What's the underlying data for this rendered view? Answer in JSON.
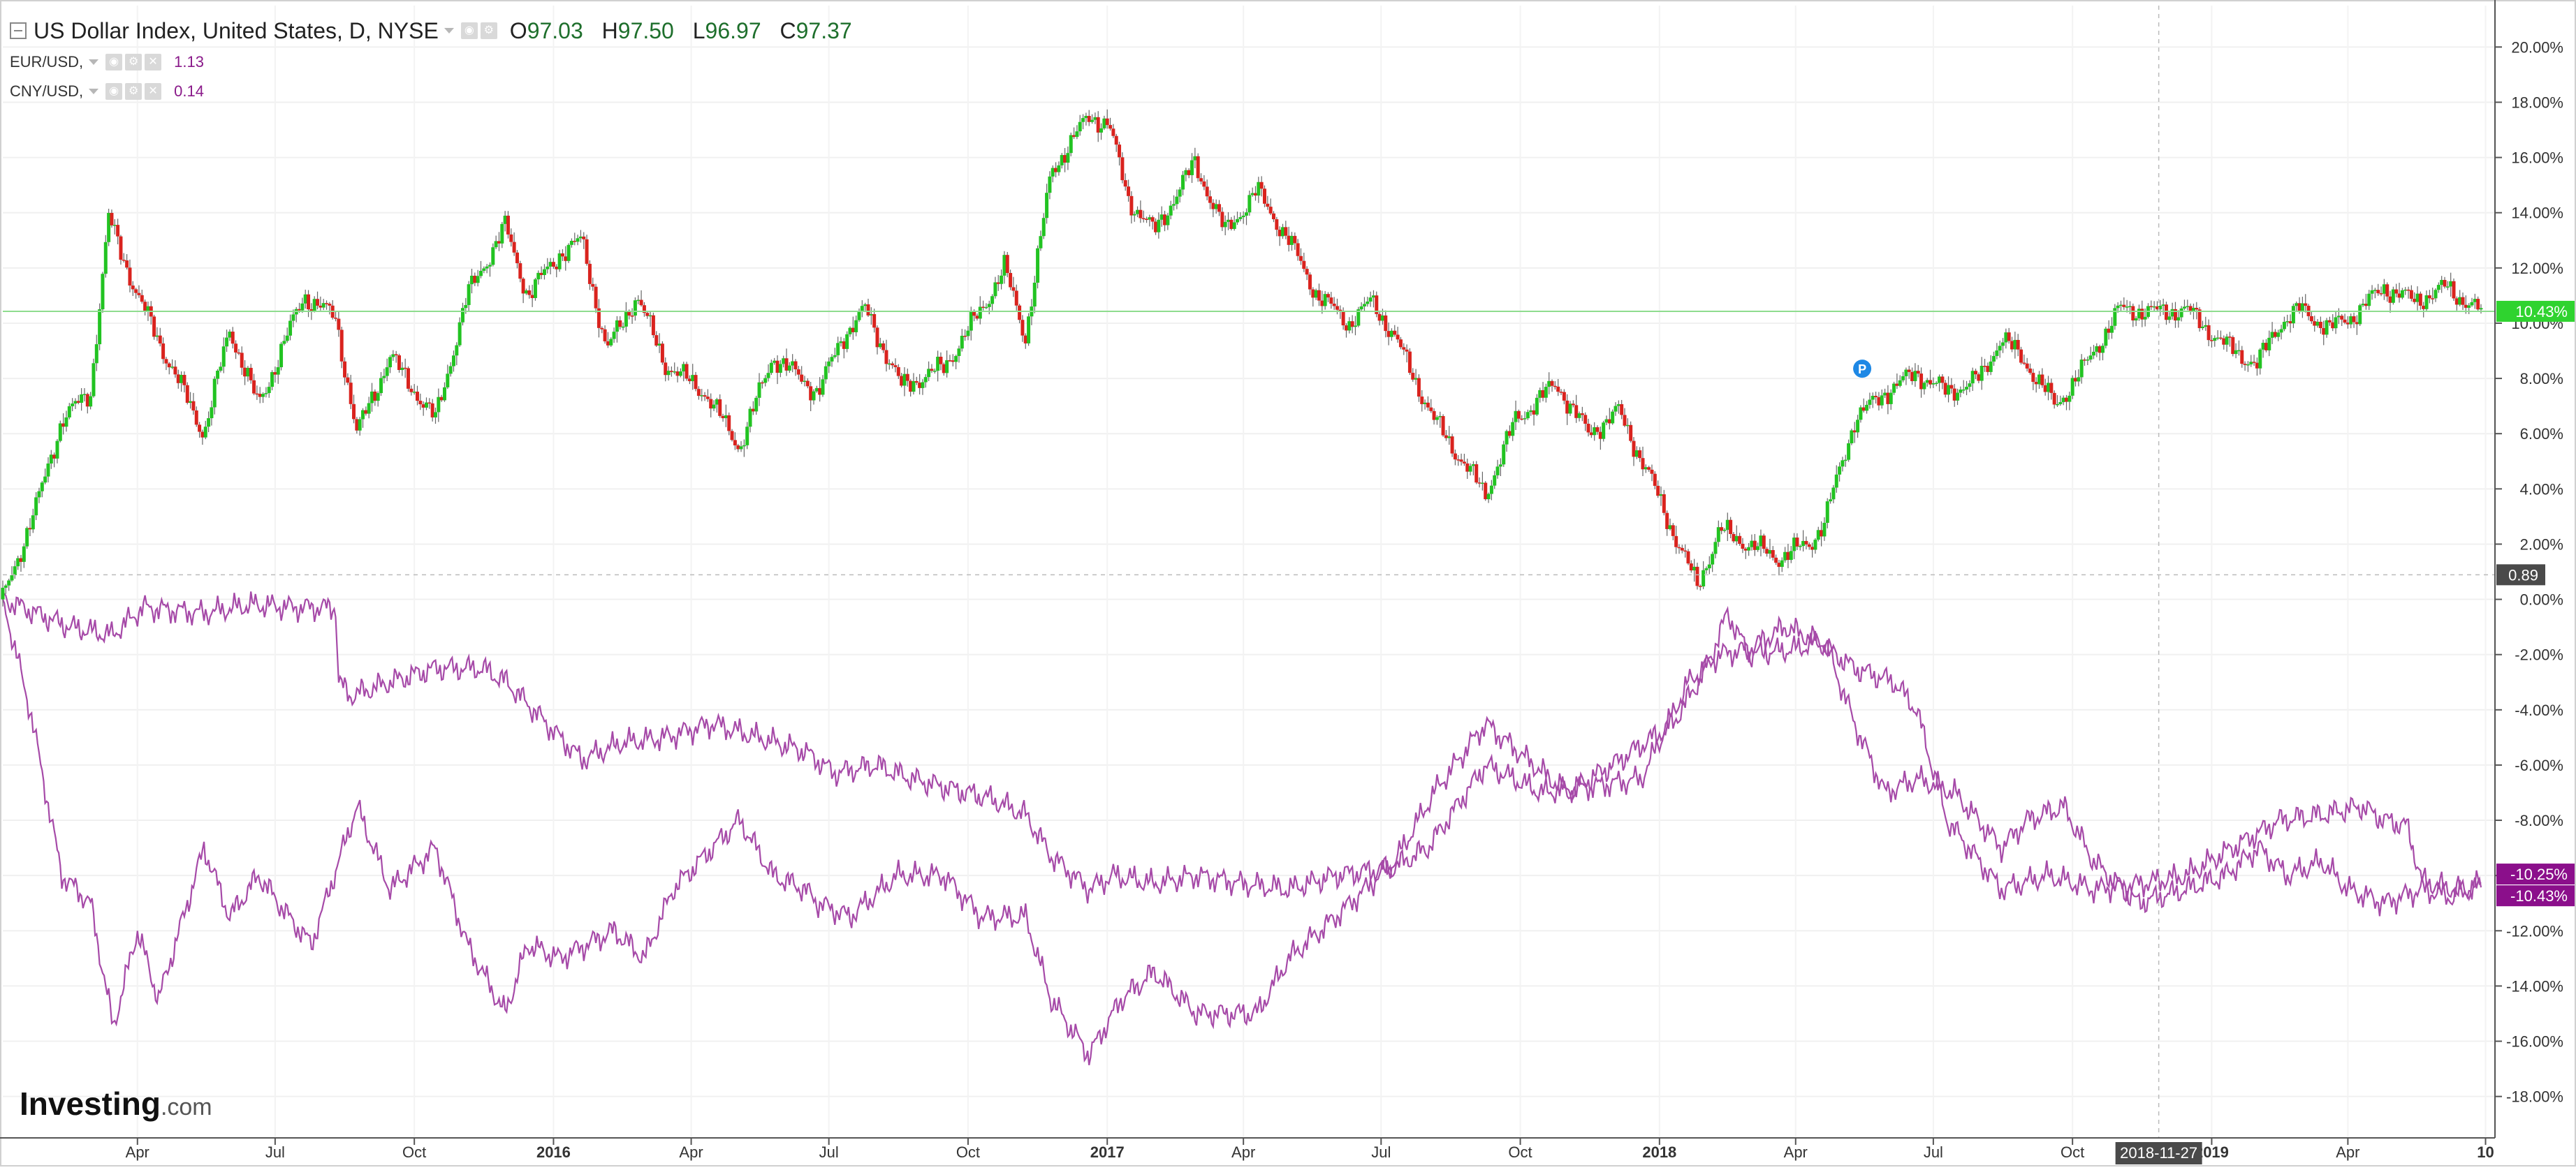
{
  "legend": {
    "main": {
      "title": "US Dollar Index, United States, D, NYSE",
      "open_label": "O",
      "open": "97.03",
      "high_label": "H",
      "high": "97.50",
      "low_label": "L",
      "low": "96.97",
      "close_label": "C",
      "close": "97.37"
    },
    "overlays": [
      {
        "symbol": "EUR/USD,",
        "value": "1.13"
      },
      {
        "symbol": "CNY/USD,",
        "value": "0.14"
      }
    ]
  },
  "watermark": {
    "brand": "Investing",
    "suffix": ".com"
  },
  "colors": {
    "up": "#22c322",
    "down": "#d9231e",
    "overlay": "#a64aa8",
    "current_line": "#8fdc8f",
    "current_badge": "#2fd32f",
    "overlay_badge": "#8b0f8b",
    "crosshair_badge": "#4a4a4a"
  },
  "chart_data": {
    "type": "candlestick",
    "x_start": "2015-01-02",
    "x_end": "2019-06-28",
    "ylim": [
      -19.5,
      21.5
    ],
    "y_unit": "%",
    "y_ticks": [
      "20.00%",
      "18.00%",
      "16.00%",
      "14.00%",
      "12.00%",
      "10.00%",
      "8.00%",
      "6.00%",
      "4.00%",
      "2.00%",
      "0.00%",
      "-2.00%",
      "-4.00%",
      "-6.00%",
      "-8.00%",
      "-10.00%",
      "-12.00%",
      "-14.00%",
      "-16.00%",
      "-18.00%"
    ],
    "x_ticks": [
      {
        "date": "2015-01-01",
        "label": "2015",
        "bold": true
      },
      {
        "date": "2015-04-01",
        "label": "Apr"
      },
      {
        "date": "2015-07-01",
        "label": "Jul"
      },
      {
        "date": "2015-10-01",
        "label": "Oct"
      },
      {
        "date": "2016-01-01",
        "label": "2016",
        "bold": true
      },
      {
        "date": "2016-04-01",
        "label": "Apr"
      },
      {
        "date": "2016-07-01",
        "label": "Jul"
      },
      {
        "date": "2016-10-01",
        "label": "Oct"
      },
      {
        "date": "2017-01-01",
        "label": "2017",
        "bold": true
      },
      {
        "date": "2017-04-01",
        "label": "Apr"
      },
      {
        "date": "2017-07-01",
        "label": "Jul"
      },
      {
        "date": "2017-10-01",
        "label": "Oct"
      },
      {
        "date": "2018-01-01",
        "label": "2018",
        "bold": true
      },
      {
        "date": "2018-04-01",
        "label": "Apr"
      },
      {
        "date": "2018-07-01",
        "label": "Jul"
      },
      {
        "date": "2018-10-01",
        "label": "Oct"
      },
      {
        "date": "2019-01-01",
        "label": "2019",
        "bold": true
      },
      {
        "date": "2019-04-01",
        "label": "Apr"
      },
      {
        "date": "2019-07-01",
        "label": "10",
        "bold": true
      }
    ],
    "series": [
      {
        "symbol": "US Dollar Index",
        "style": "candles",
        "points": [
          [
            "2015-01-02",
            0.0
          ],
          [
            "2015-01-25",
            3.5
          ],
          [
            "2015-02-10",
            6.5
          ],
          [
            "2015-03-01",
            7.5
          ],
          [
            "2015-03-13",
            13.8
          ],
          [
            "2015-04-01",
            11.0
          ],
          [
            "2015-04-20",
            8.8
          ],
          [
            "2015-05-15",
            6.0
          ],
          [
            "2015-06-01",
            9.8
          ],
          [
            "2015-06-20",
            7.0
          ],
          [
            "2015-07-20",
            11.0
          ],
          [
            "2015-08-10",
            10.2
          ],
          [
            "2015-08-24",
            6.0
          ],
          [
            "2015-09-15",
            8.8
          ],
          [
            "2015-10-15",
            6.5
          ],
          [
            "2015-11-05",
            11.0
          ],
          [
            "2015-11-30",
            13.5
          ],
          [
            "2015-12-15",
            11.0
          ],
          [
            "2016-01-05",
            12.5
          ],
          [
            "2016-01-20",
            13.0
          ],
          [
            "2016-02-05",
            9.0
          ],
          [
            "2016-02-25",
            11.0
          ],
          [
            "2016-03-15",
            8.5
          ],
          [
            "2016-04-10",
            7.5
          ],
          [
            "2016-05-03",
            5.5
          ],
          [
            "2016-05-25",
            8.8
          ],
          [
            "2016-06-24",
            7.5
          ],
          [
            "2016-07-10",
            9.5
          ],
          [
            "2016-07-25",
            10.5
          ],
          [
            "2016-08-18",
            7.7
          ],
          [
            "2016-09-15",
            8.4
          ],
          [
            "2016-10-10",
            10.5
          ],
          [
            "2016-10-25",
            12.0
          ],
          [
            "2016-11-08",
            9.5
          ],
          [
            "2016-11-25",
            15.5
          ],
          [
            "2016-12-20",
            17.5
          ],
          [
            "2017-01-02",
            17.2
          ],
          [
            "2017-01-15",
            14.5
          ],
          [
            "2017-02-01",
            13.3
          ],
          [
            "2017-02-28",
            15.8
          ],
          [
            "2017-03-20",
            13.3
          ],
          [
            "2017-04-10",
            14.8
          ],
          [
            "2017-05-01",
            13.0
          ],
          [
            "2017-05-20",
            11.0
          ],
          [
            "2017-06-10",
            10.0
          ],
          [
            "2017-06-25",
            10.8
          ],
          [
            "2017-07-10",
            9.5
          ],
          [
            "2017-08-05",
            6.5
          ],
          [
            "2017-09-08",
            3.8
          ],
          [
            "2017-09-28",
            6.5
          ],
          [
            "2017-10-25",
            7.8
          ],
          [
            "2017-11-15",
            6.0
          ],
          [
            "2017-12-05",
            6.8
          ],
          [
            "2017-12-25",
            4.5
          ],
          [
            "2018-01-15",
            1.8
          ],
          [
            "2018-01-26",
            0.5
          ],
          [
            "2018-02-10",
            2.5
          ],
          [
            "2018-03-01",
            2.0
          ],
          [
            "2018-03-20",
            1.5
          ],
          [
            "2018-04-10",
            2.0
          ],
          [
            "2018-04-20",
            2.8
          ],
          [
            "2018-05-10",
            6.5
          ],
          [
            "2018-05-30",
            7.5
          ],
          [
            "2018-06-20",
            8.2
          ],
          [
            "2018-07-10",
            7.5
          ],
          [
            "2018-08-01",
            8.0
          ],
          [
            "2018-08-15",
            9.5
          ],
          [
            "2018-09-01",
            8.5
          ],
          [
            "2018-09-20",
            7.0
          ],
          [
            "2018-10-10",
            8.5
          ],
          [
            "2018-11-01",
            10.5
          ],
          [
            "2018-11-27",
            10.4
          ],
          [
            "2018-12-15",
            10.5
          ],
          [
            "2019-01-10",
            9.2
          ],
          [
            "2019-01-31",
            8.5
          ],
          [
            "2019-02-15",
            10.0
          ],
          [
            "2019-03-01",
            10.5
          ],
          [
            "2019-03-20",
            9.8
          ],
          [
            "2019-04-05",
            10.3
          ],
          [
            "2019-04-25",
            11.3
          ],
          [
            "2019-05-15",
            10.8
          ],
          [
            "2019-06-05",
            11.3
          ],
          [
            "2019-06-28",
            10.4
          ]
        ]
      },
      {
        "symbol": "EUR/USD",
        "style": "line",
        "points": [
          [
            "2015-01-02",
            0.0
          ],
          [
            "2015-01-20",
            -4.0
          ],
          [
            "2015-02-10",
            -10.0
          ],
          [
            "2015-03-01",
            -11.0
          ],
          [
            "2015-03-16",
            -15.5
          ],
          [
            "2015-04-01",
            -12.0
          ],
          [
            "2015-04-15",
            -14.5
          ],
          [
            "2015-05-15",
            -9.0
          ],
          [
            "2015-06-01",
            -11.5
          ],
          [
            "2015-06-20",
            -10.0
          ],
          [
            "2015-07-10",
            -11.5
          ],
          [
            "2015-07-25",
            -12.5
          ],
          [
            "2015-08-24",
            -7.5
          ],
          [
            "2015-09-15",
            -10.5
          ],
          [
            "2015-10-15",
            -9.0
          ],
          [
            "2015-11-05",
            -12.5
          ],
          [
            "2015-11-30",
            -15.0
          ],
          [
            "2015-12-15",
            -12.5
          ],
          [
            "2016-01-05",
            -13.0
          ],
          [
            "2016-02-10",
            -12.0
          ],
          [
            "2016-03-01",
            -13.0
          ],
          [
            "2016-03-20",
            -10.5
          ],
          [
            "2016-04-15",
            -9.0
          ],
          [
            "2016-05-03",
            -8.0
          ],
          [
            "2016-05-25",
            -10.0
          ],
          [
            "2016-06-15",
            -10.5
          ],
          [
            "2016-06-24",
            -11.0
          ],
          [
            "2016-07-15",
            -11.5
          ],
          [
            "2016-08-15",
            -10.0
          ],
          [
            "2016-09-15",
            -10.0
          ],
          [
            "2016-10-10",
            -11.5
          ],
          [
            "2016-11-08",
            -11.5
          ],
          [
            "2016-11-25",
            -14.5
          ],
          [
            "2016-12-20",
            -16.5
          ],
          [
            "2017-01-10",
            -14.5
          ],
          [
            "2017-02-01",
            -13.5
          ],
          [
            "2017-03-01",
            -15.0
          ],
          [
            "2017-04-10",
            -15.0
          ],
          [
            "2017-05-01",
            -13.0
          ],
          [
            "2017-06-01",
            -11.5
          ],
          [
            "2017-07-10",
            -9.5
          ],
          [
            "2017-08-05",
            -7.0
          ],
          [
            "2017-09-08",
            -4.5
          ],
          [
            "2017-10-10",
            -6.0
          ],
          [
            "2017-11-01",
            -7.0
          ],
          [
            "2017-12-01",
            -6.0
          ],
          [
            "2018-01-10",
            -4.5
          ],
          [
            "2018-02-01",
            -2.5
          ],
          [
            "2018-02-15",
            -0.5
          ],
          [
            "2018-03-01",
            -2.0
          ],
          [
            "2018-04-01",
            -1.8
          ],
          [
            "2018-04-20",
            -1.5
          ],
          [
            "2018-05-10",
            -4.5
          ],
          [
            "2018-05-30",
            -7.0
          ],
          [
            "2018-06-20",
            -6.5
          ],
          [
            "2018-07-15",
            -7.0
          ],
          [
            "2018-08-15",
            -9.0
          ],
          [
            "2018-09-01",
            -8.0
          ],
          [
            "2018-09-25",
            -7.5
          ],
          [
            "2018-10-15",
            -9.5
          ],
          [
            "2018-11-13",
            -11.0
          ],
          [
            "2018-12-15",
            -10.5
          ],
          [
            "2019-01-10",
            -10.0
          ],
          [
            "2019-02-01",
            -9.0
          ],
          [
            "2019-02-20",
            -10.0
          ],
          [
            "2019-03-15",
            -9.5
          ],
          [
            "2019-04-01",
            -10.5
          ],
          [
            "2019-04-25",
            -11.0
          ],
          [
            "2019-05-20",
            -10.5
          ],
          [
            "2019-06-10",
            -10.8
          ],
          [
            "2019-06-28",
            -10.25
          ]
        ]
      },
      {
        "symbol": "CNY/USD",
        "style": "line",
        "points": [
          [
            "2015-01-02",
            0.0
          ],
          [
            "2015-02-15",
            -1.0
          ],
          [
            "2015-03-15",
            -1.3
          ],
          [
            "2015-04-05",
            -0.3
          ],
          [
            "2015-05-15",
            -0.5
          ],
          [
            "2015-06-15",
            -0.2
          ],
          [
            "2015-07-15",
            -0.3
          ],
          [
            "2015-08-10",
            -0.3
          ],
          [
            "2015-08-12",
            -3.0
          ],
          [
            "2015-08-20",
            -3.5
          ],
          [
            "2015-09-15",
            -3.0
          ],
          [
            "2015-10-15",
            -2.5
          ],
          [
            "2015-11-15",
            -2.5
          ],
          [
            "2015-12-01",
            -3.0
          ],
          [
            "2016-01-05",
            -5.0
          ],
          [
            "2016-01-20",
            -5.8
          ],
          [
            "2016-02-15",
            -5.2
          ],
          [
            "2016-03-15",
            -5.0
          ],
          [
            "2016-04-15",
            -4.5
          ],
          [
            "2016-05-15",
            -5.0
          ],
          [
            "2016-06-15",
            -5.5
          ],
          [
            "2016-07-05",
            -6.3
          ],
          [
            "2016-08-01",
            -6.0
          ],
          [
            "2016-08-25",
            -6.5
          ],
          [
            "2016-09-15",
            -6.8
          ],
          [
            "2016-10-15",
            -7.2
          ],
          [
            "2016-11-08",
            -7.8
          ],
          [
            "2016-11-25",
            -9.3
          ],
          [
            "2016-12-20",
            -10.5
          ],
          [
            "2017-01-05",
            -10.0
          ],
          [
            "2017-02-01",
            -10.3
          ],
          [
            "2017-03-01",
            -10.0
          ],
          [
            "2017-04-01",
            -10.3
          ],
          [
            "2017-05-01",
            -10.5
          ],
          [
            "2017-06-01",
            -10.0
          ],
          [
            "2017-07-10",
            -9.7
          ],
          [
            "2017-08-01",
            -9.0
          ],
          [
            "2017-09-08",
            -6.0
          ],
          [
            "2017-10-15",
            -7.0
          ],
          [
            "2017-11-15",
            -6.8
          ],
          [
            "2017-12-20",
            -6.5
          ],
          [
            "2018-01-20",
            -3.0
          ],
          [
            "2018-02-10",
            -2.0
          ],
          [
            "2018-03-01",
            -1.8
          ],
          [
            "2018-03-25",
            -1.0
          ],
          [
            "2018-04-15",
            -1.5
          ],
          [
            "2018-05-10",
            -2.5
          ],
          [
            "2018-06-05",
            -3.0
          ],
          [
            "2018-06-20",
            -4.0
          ],
          [
            "2018-07-10",
            -8.0
          ],
          [
            "2018-08-15",
            -10.5
          ],
          [
            "2018-09-15",
            -10.0
          ],
          [
            "2018-10-15",
            -10.5
          ],
          [
            "2018-11-15",
            -10.3
          ],
          [
            "2018-12-15",
            -10.0
          ],
          [
            "2019-01-15",
            -9.0
          ],
          [
            "2019-02-15",
            -8.0
          ],
          [
            "2019-03-15",
            -7.8
          ],
          [
            "2019-04-10",
            -7.5
          ],
          [
            "2019-04-25",
            -8.0
          ],
          [
            "2019-05-10",
            -8.2
          ],
          [
            "2019-05-20",
            -10.2
          ],
          [
            "2019-06-10",
            -10.5
          ],
          [
            "2019-06-28",
            -10.43
          ]
        ]
      }
    ],
    "price_labels": [
      {
        "series": "US Dollar Index",
        "value": 10.43,
        "text": "10.43%",
        "color": "#2fd32f"
      },
      {
        "series": "EUR/USD",
        "value": -10.25,
        "text": "-10.25%",
        "color": "#8b0f8b"
      },
      {
        "series": "CNY/USD",
        "value": -10.43,
        "text": "-10.43%",
        "color": "#8b0f8b"
      }
    ],
    "crosshair": {
      "x_date": "2018-11-27",
      "x_label": "2018-11-27",
      "y_value": 0.89,
      "y_label": "0.89"
    },
    "marker": {
      "date": "2018-05-15",
      "value": 8.0,
      "label": "P"
    },
    "grid": true
  }
}
